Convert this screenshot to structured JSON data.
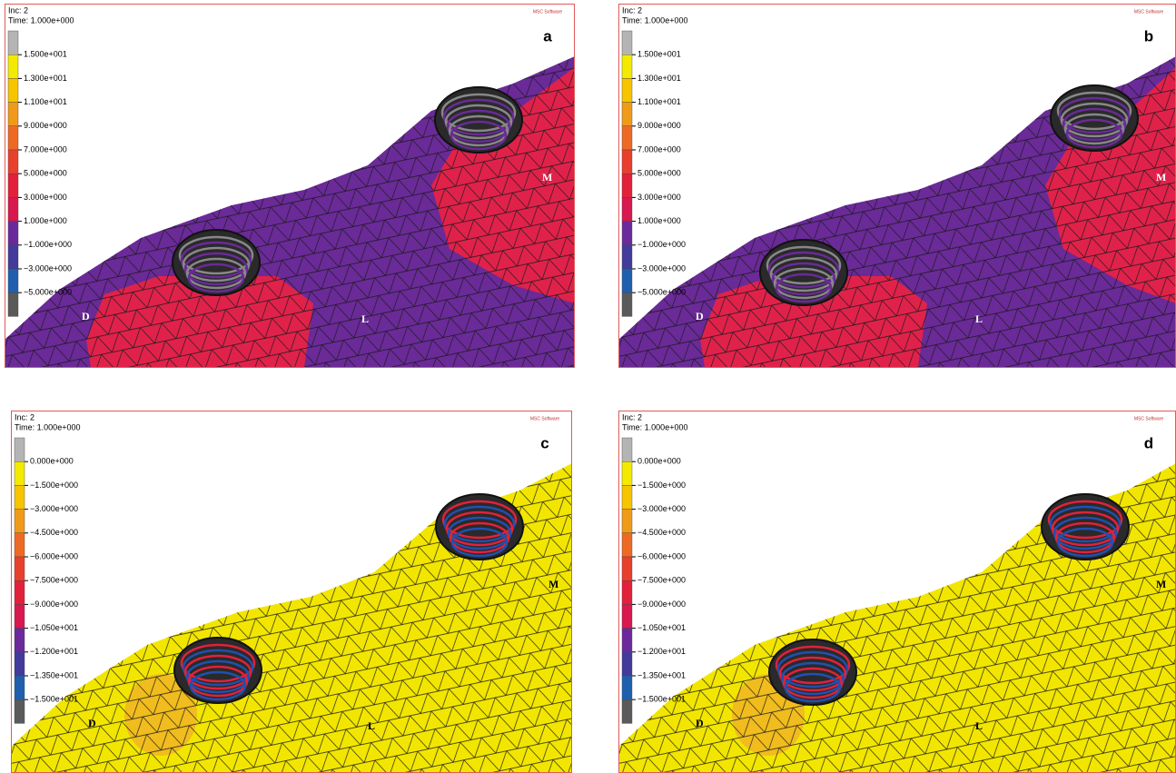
{
  "panels": [
    {
      "letter": "a",
      "inc": "Inc: 2",
      "time": "Time: 1.000e+000",
      "logo": "MSC Software",
      "legend": [
        "1.500e+001",
        "1.300e+001",
        "1.100e+001",
        "9.000e+000",
        "7.000e+000",
        "5.000e+000",
        "3.000e+000",
        "1.000e+000",
        "−1.000e+000",
        "−3.000e+000",
        "−5.000e+000"
      ],
      "regions": [
        "D",
        "L",
        "M"
      ]
    },
    {
      "letter": "b",
      "inc": "Inc: 2",
      "time": "Time: 1.000e+000",
      "logo": "MSC Software",
      "legend": [
        "1.500e+001",
        "1.300e+001",
        "1.100e+001",
        "9.000e+000",
        "7.000e+000",
        "5.000e+000",
        "3.000e+000",
        "1.000e+000",
        "−1.000e+000",
        "−3.000e+000",
        "−5.000e+000"
      ],
      "regions": [
        "D",
        "L",
        "M"
      ]
    },
    {
      "letter": "c",
      "inc": "Inc: 2",
      "time": "Time: 1.000e+000",
      "logo": "MSC Software",
      "legend": [
        "0.000e+000",
        "−1.500e+000",
        "−3.000e+000",
        "−4.500e+000",
        "−6.000e+000",
        "−7.500e+000",
        "−9.000e+000",
        "−1.050e+001",
        "−1.200e+001",
        "−1.350e+001",
        "−1.500e+001"
      ],
      "regions": [
        "D",
        "L",
        "M"
      ]
    },
    {
      "letter": "d",
      "inc": "Inc: 2",
      "time": "Time: 1.000e+000",
      "logo": "MSC Software",
      "legend": [
        "0.000e+000",
        "−1.500e+000",
        "−3.000e+000",
        "−4.500e+000",
        "−6.000e+000",
        "−7.500e+000",
        "−9.000e+000",
        "−1.050e+001",
        "−1.200e+001",
        "−1.350e+001",
        "−1.500e+001"
      ],
      "regions": [
        "D",
        "L",
        "M"
      ]
    }
  ]
}
